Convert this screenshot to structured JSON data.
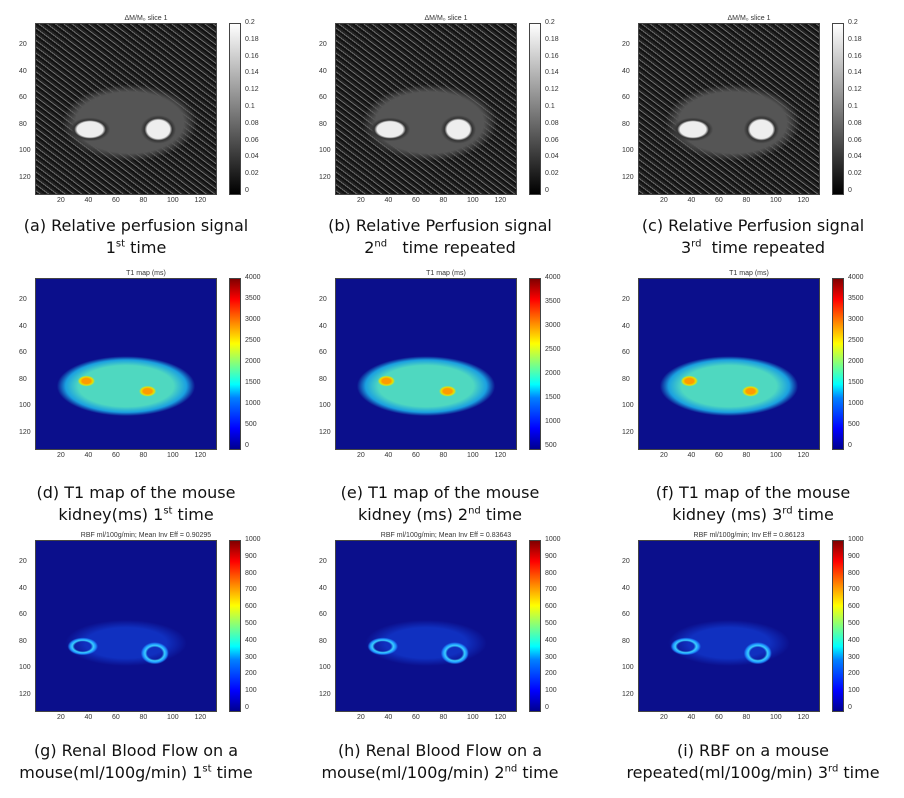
{
  "rows": [
    {
      "row_id": "perfusion",
      "panels": [
        {
          "title": "ΔM/M₀ slice 1",
          "yticks": [
            "20",
            "40",
            "60",
            "80",
            "100",
            "120"
          ],
          "xticks": [
            "20",
            "40",
            "60",
            "80",
            "100",
            "120"
          ],
          "cbar": [
            "0.2",
            "0.18",
            "0.16",
            "0.14",
            "0.12",
            "0.1",
            "0.08",
            "0.06",
            "0.04",
            "0.02",
            "0"
          ],
          "caption_line1": "(a) Relative perfusion signal",
          "caption_line2_main": "1",
          "caption_line2_sup": "st",
          "caption_line2_rest": " time"
        },
        {
          "title": "ΔM/M₀ slice 1",
          "yticks": [
            "20",
            "40",
            "60",
            "80",
            "100",
            "120"
          ],
          "xticks": [
            "20",
            "40",
            "60",
            "80",
            "100",
            "120"
          ],
          "cbar": [
            "0.2",
            "0.18",
            "0.16",
            "0.14",
            "0.12",
            "0.1",
            "0.08",
            "0.06",
            "0.04",
            "0.02",
            "0"
          ],
          "caption_line1": "(b) Relative Perfusion signal",
          "caption_line2_main": "2",
          "caption_line2_sup": "nd",
          "caption_line2_rest": "   time repeated"
        },
        {
          "title": "ΔM/M₀ slice 1",
          "yticks": [
            "20",
            "40",
            "60",
            "80",
            "100",
            "120"
          ],
          "xticks": [
            "20",
            "40",
            "60",
            "80",
            "100",
            "120"
          ],
          "cbar": [
            "0.2",
            "0.18",
            "0.16",
            "0.14",
            "0.12",
            "0.1",
            "0.08",
            "0.06",
            "0.04",
            "0.02",
            "0"
          ],
          "caption_line1": "(c) Relative Perfusion signal",
          "caption_line2_main": "3",
          "caption_line2_sup": "rd",
          "caption_line2_rest": "  time repeated"
        }
      ]
    },
    {
      "row_id": "t1",
      "panels": [
        {
          "title": "T1 map (ms)",
          "yticks": [
            "20",
            "40",
            "60",
            "80",
            "100",
            "120"
          ],
          "xticks": [
            "20",
            "40",
            "60",
            "80",
            "100",
            "120"
          ],
          "cbar": [
            "4000",
            "3500",
            "3000",
            "2500",
            "2000",
            "1500",
            "1000",
            "500",
            "0"
          ],
          "caption_line1": "(d) T1  map of the mouse",
          "caption_line2_main": "kidney(ms) 1",
          "caption_line2_sup": "st",
          "caption_line2_rest": " time"
        },
        {
          "title": "T1 map (ms)",
          "yticks": [
            "20",
            "40",
            "60",
            "80",
            "100",
            "120"
          ],
          "xticks": [
            "20",
            "40",
            "60",
            "80",
            "100",
            "120"
          ],
          "cbar": [
            "4000",
            "3500",
            "3000",
            "2500",
            "2000",
            "1500",
            "1000",
            "500"
          ],
          "caption_line1": "(e) T1  map of the mouse",
          "caption_line2_main": "kidney (ms) 2",
          "caption_line2_sup": "nd",
          "caption_line2_rest": " time"
        },
        {
          "title": "T1 map (ms)",
          "yticks": [
            "20",
            "40",
            "60",
            "80",
            "100",
            "120"
          ],
          "xticks": [
            "20",
            "40",
            "60",
            "80",
            "100",
            "120"
          ],
          "cbar": [
            "4000",
            "3500",
            "3000",
            "2500",
            "2000",
            "1500",
            "1000",
            "500",
            "0"
          ],
          "caption_line1": "(f) T1  map of the mouse",
          "caption_line2_main": "kidney (ms) 3",
          "caption_line2_sup": "rd",
          "caption_line2_rest": " time"
        }
      ]
    },
    {
      "row_id": "rbf",
      "panels": [
        {
          "title": "RBF ml/100g/min; Mean Inv Eff = 0.90295",
          "yticks": [
            "20",
            "40",
            "60",
            "80",
            "100",
            "120"
          ],
          "xticks": [
            "20",
            "40",
            "60",
            "80",
            "100",
            "120"
          ],
          "cbar": [
            "1000",
            "900",
            "800",
            "700",
            "600",
            "500",
            "400",
            "300",
            "200",
            "100",
            "0"
          ],
          "caption_line1": "(g) Renal Blood Flow on a",
          "caption_line2_main": "mouse(ml/100g/min) 1",
          "caption_line2_sup": "st",
          "caption_line2_rest": " time"
        },
        {
          "title": "RBF ml/100g/min; Mean Inv Eff = 0.83643",
          "yticks": [
            "20",
            "40",
            "60",
            "80",
            "100",
            "120"
          ],
          "xticks": [
            "20",
            "40",
            "60",
            "80",
            "100",
            "120"
          ],
          "cbar": [
            "1000",
            "900",
            "800",
            "700",
            "600",
            "500",
            "400",
            "300",
            "200",
            "100",
            "0"
          ],
          "caption_line1": "(h) Renal Blood Flow on a",
          "caption_line2_main": "mouse(ml/100g/min) 2",
          "caption_line2_sup": "nd",
          "caption_line2_rest": " time"
        },
        {
          "title": "RBF ml/100g/min; Inv Eff = 0.86123",
          "yticks": [
            "20",
            "40",
            "60",
            "80",
            "100",
            "120"
          ],
          "xticks": [
            "20",
            "40",
            "60",
            "80",
            "100",
            "120"
          ],
          "cbar": [
            "1000",
            "900",
            "800",
            "700",
            "600",
            "500",
            "400",
            "300",
            "200",
            "100",
            "0"
          ],
          "caption_line1": "(i) RBF on a mouse",
          "caption_line2_main": "repeated(ml/100g/min) 3",
          "caption_line2_sup": "rd",
          "caption_line2_rest": " time"
        }
      ]
    }
  ]
}
